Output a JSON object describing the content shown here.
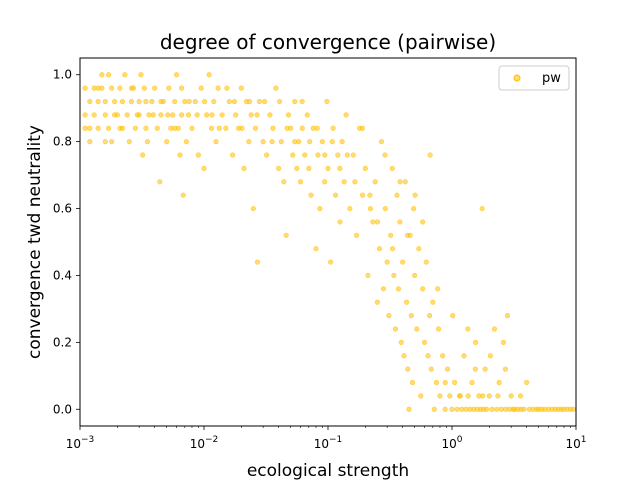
{
  "chart_data": {
    "type": "scatter",
    "title": "degree of convergence (pairwise)",
    "xlabel": "ecological strength",
    "ylabel": "convergence twd neutrality",
    "xscale": "log",
    "xlim": [
      0.001,
      10
    ],
    "ylim": [
      -0.05,
      1.05
    ],
    "xticks": [
      0.001,
      0.01,
      0.1,
      1,
      10
    ],
    "xtick_labels": [
      {
        "base": "10",
        "exp": "−3"
      },
      {
        "base": "10",
        "exp": "−2"
      },
      {
        "base": "10",
        "exp": "−1"
      },
      {
        "base": "10",
        "exp": "0"
      },
      {
        "base": "10",
        "exp": "1"
      }
    ],
    "yticks": [
      0.0,
      0.2,
      0.4,
      0.6,
      0.8,
      1.0
    ],
    "ytick_labels": [
      "0.0",
      "0.2",
      "0.4",
      "0.6",
      "0.8",
      "1.0"
    ],
    "grid": false,
    "legend_position": "top-right",
    "series": [
      {
        "name": "pw",
        "color": "#FFBF00",
        "points": [
          [
            0.0011,
            0.96
          ],
          [
            0.0011,
            0.88
          ],
          [
            0.0011,
            0.84
          ],
          [
            0.0012,
            0.92
          ],
          [
            0.0012,
            0.8
          ],
          [
            0.0013,
            0.96
          ],
          [
            0.0013,
            0.88
          ],
          [
            0.0014,
            0.92
          ],
          [
            0.0014,
            0.84
          ],
          [
            0.0015,
            1.0
          ],
          [
            0.0015,
            0.96
          ],
          [
            0.0016,
            0.88
          ],
          [
            0.0016,
            0.92
          ],
          [
            0.0017,
            1.0
          ],
          [
            0.0017,
            0.84
          ],
          [
            0.0018,
            0.96
          ],
          [
            0.0018,
            0.8
          ],
          [
            0.0019,
            0.92
          ],
          [
            0.002,
            0.88
          ],
          [
            0.0021,
            0.96
          ],
          [
            0.0021,
            0.84
          ],
          [
            0.0022,
            0.92
          ],
          [
            0.0023,
            1.0
          ],
          [
            0.0024,
            0.88
          ],
          [
            0.0025,
            0.8
          ],
          [
            0.0026,
            0.92
          ],
          [
            0.0027,
            0.96
          ],
          [
            0.0028,
            0.84
          ],
          [
            0.0029,
            0.88
          ],
          [
            0.003,
            0.92
          ],
          [
            0.0031,
            1.0
          ],
          [
            0.0032,
            0.76
          ],
          [
            0.0033,
            0.96
          ],
          [
            0.0034,
            0.84
          ],
          [
            0.0035,
            0.8
          ],
          [
            0.0036,
            0.88
          ],
          [
            0.0038,
            0.92
          ],
          [
            0.004,
            0.96
          ],
          [
            0.0042,
            0.84
          ],
          [
            0.0044,
            0.68
          ],
          [
            0.0045,
            0.88
          ],
          [
            0.0047,
            0.92
          ],
          [
            0.005,
            0.8
          ],
          [
            0.0052,
            0.96
          ],
          [
            0.0054,
            0.84
          ],
          [
            0.0056,
            0.88
          ],
          [
            0.0058,
            0.92
          ],
          [
            0.006,
            1.0
          ],
          [
            0.0062,
            0.84
          ],
          [
            0.0064,
            0.76
          ],
          [
            0.0066,
            0.88
          ],
          [
            0.0068,
            0.64
          ],
          [
            0.007,
            0.92
          ],
          [
            0.0072,
            0.8
          ],
          [
            0.0075,
            0.88
          ],
          [
            0.008,
            0.84
          ],
          [
            0.0085,
            0.92
          ],
          [
            0.009,
            0.76
          ],
          [
            0.0095,
            0.96
          ],
          [
            0.01,
            0.72
          ],
          [
            0.0105,
            0.88
          ],
          [
            0.011,
            1.0
          ],
          [
            0.0115,
            0.84
          ],
          [
            0.012,
            0.92
          ],
          [
            0.0125,
            0.8
          ],
          [
            0.013,
            0.96
          ],
          [
            0.014,
            0.88
          ],
          [
            0.015,
            0.84
          ],
          [
            0.016,
            0.92
          ],
          [
            0.017,
            0.76
          ],
          [
            0.018,
            0.88
          ],
          [
            0.019,
            0.84
          ],
          [
            0.02,
            0.96
          ],
          [
            0.021,
            0.72
          ],
          [
            0.022,
            0.92
          ],
          [
            0.023,
            0.8
          ],
          [
            0.024,
            0.88
          ],
          [
            0.025,
            0.6
          ],
          [
            0.026,
            0.84
          ],
          [
            0.027,
            0.44
          ],
          [
            0.028,
            0.92
          ],
          [
            0.03,
            0.8
          ],
          [
            0.032,
            0.76
          ],
          [
            0.034,
            0.88
          ],
          [
            0.036,
            0.84
          ],
          [
            0.038,
            0.96
          ],
          [
            0.04,
            0.72
          ],
          [
            0.042,
            0.8
          ],
          [
            0.044,
            0.68
          ],
          [
            0.046,
            0.52
          ],
          [
            0.048,
            0.88
          ],
          [
            0.05,
            0.84
          ],
          [
            0.052,
            0.76
          ],
          [
            0.054,
            0.92
          ],
          [
            0.056,
            0.72
          ],
          [
            0.058,
            0.8
          ],
          [
            0.06,
            0.68
          ],
          [
            0.062,
            0.84
          ],
          [
            0.065,
            0.76
          ],
          [
            0.068,
            0.88
          ],
          [
            0.07,
            0.72
          ],
          [
            0.073,
            0.64
          ],
          [
            0.076,
            0.84
          ],
          [
            0.08,
            0.48
          ],
          [
            0.083,
            0.76
          ],
          [
            0.086,
            0.6
          ],
          [
            0.09,
            0.8
          ],
          [
            0.094,
            0.68
          ],
          [
            0.098,
            0.92
          ],
          [
            0.1,
            0.72
          ],
          [
            0.105,
            0.44
          ],
          [
            0.11,
            0.84
          ],
          [
            0.115,
            0.64
          ],
          [
            0.12,
            0.76
          ],
          [
            0.125,
            0.56
          ],
          [
            0.13,
            0.8
          ],
          [
            0.135,
            0.68
          ],
          [
            0.14,
            0.88
          ],
          [
            0.15,
            0.6
          ],
          [
            0.16,
            0.76
          ],
          [
            0.17,
            0.52
          ],
          [
            0.18,
            0.84
          ],
          [
            0.19,
            0.64
          ],
          [
            0.2,
            0.72
          ],
          [
            0.21,
            0.4
          ],
          [
            0.22,
            0.6
          ],
          [
            0.23,
            0.56
          ],
          [
            0.24,
            0.68
          ],
          [
            0.25,
            0.32
          ],
          [
            0.26,
            0.48
          ],
          [
            0.27,
            0.8
          ],
          [
            0.28,
            0.36
          ],
          [
            0.29,
            0.6
          ],
          [
            0.3,
            0.44
          ],
          [
            0.31,
            0.28
          ],
          [
            0.32,
            0.52
          ],
          [
            0.33,
            0.72
          ],
          [
            0.34,
            0.4
          ],
          [
            0.35,
            0.24
          ],
          [
            0.36,
            0.64
          ],
          [
            0.37,
            0.36
          ],
          [
            0.38,
            0.56
          ],
          [
            0.39,
            0.2
          ],
          [
            0.4,
            0.44
          ],
          [
            0.41,
            0.16
          ],
          [
            0.42,
            0.68
          ],
          [
            0.43,
            0.32
          ],
          [
            0.44,
            0.12
          ],
          [
            0.45,
            0.0
          ],
          [
            0.46,
            0.52
          ],
          [
            0.47,
            0.28
          ],
          [
            0.48,
            0.08
          ],
          [
            0.49,
            0.6
          ],
          [
            0.5,
            0.4
          ],
          [
            0.52,
            0.24
          ],
          [
            0.54,
            0.48
          ],
          [
            0.56,
            0.04
          ],
          [
            0.58,
            0.36
          ],
          [
            0.6,
            0.2
          ],
          [
            0.62,
            0.44
          ],
          [
            0.64,
            0.16
          ],
          [
            0.66,
            0.28
          ],
          [
            0.68,
            0.12
          ],
          [
            0.7,
            0.32
          ],
          [
            0.72,
            0.0
          ],
          [
            0.75,
            0.08
          ],
          [
            0.78,
            0.24
          ],
          [
            0.8,
            0.04
          ],
          [
            0.84,
            0.16
          ],
          [
            0.88,
            0.0
          ],
          [
            0.92,
            0.12
          ],
          [
            0.96,
            0.04
          ],
          [
            1.0,
            0.0
          ],
          [
            1.05,
            0.08
          ],
          [
            1.1,
            0.0
          ],
          [
            1.15,
            0.04
          ],
          [
            1.2,
            0.0
          ],
          [
            1.25,
            0.16
          ],
          [
            1.3,
            0.0
          ],
          [
            1.35,
            0.04
          ],
          [
            1.4,
            0.0
          ],
          [
            1.45,
            0.08
          ],
          [
            1.5,
            0.0
          ],
          [
            1.55,
            0.2
          ],
          [
            1.6,
            0.0
          ],
          [
            1.65,
            0.04
          ],
          [
            1.7,
            0.0
          ],
          [
            1.75,
            0.6
          ],
          [
            1.8,
            0.0
          ],
          [
            1.85,
            0.12
          ],
          [
            1.9,
            0.0
          ],
          [
            2.0,
            0.04
          ],
          [
            2.1,
            0.0
          ],
          [
            2.2,
            0.24
          ],
          [
            2.3,
            0.0
          ],
          [
            2.4,
            0.08
          ],
          [
            2.5,
            0.0
          ],
          [
            2.6,
            0.2
          ],
          [
            2.7,
            0.0
          ],
          [
            2.8,
            0.28
          ],
          [
            2.9,
            0.0
          ],
          [
            3.0,
            0.04
          ],
          [
            3.2,
            0.0
          ],
          [
            3.4,
            0.0
          ],
          [
            3.6,
            0.0
          ],
          [
            3.8,
            0.0
          ],
          [
            4.0,
            0.08
          ],
          [
            4.2,
            0.0
          ],
          [
            4.5,
            0.0
          ],
          [
            4.8,
            0.0
          ],
          [
            5.0,
            0.0
          ],
          [
            5.3,
            0.0
          ],
          [
            5.6,
            0.0
          ],
          [
            6.0,
            0.0
          ],
          [
            6.4,
            0.0
          ],
          [
            6.8,
            0.0
          ],
          [
            7.2,
            0.0
          ],
          [
            7.6,
            0.0
          ],
          [
            8.0,
            0.0
          ],
          [
            8.5,
            0.0
          ],
          [
            9.0,
            0.0
          ],
          [
            9.5,
            0.0
          ],
          [
            0.0012,
            0.84
          ],
          [
            0.0014,
            0.96
          ],
          [
            0.0016,
            0.8
          ],
          [
            0.0019,
            0.88
          ],
          [
            0.0022,
            0.84
          ],
          [
            0.0026,
            0.96
          ],
          [
            0.003,
            0.88
          ],
          [
            0.0034,
            0.92
          ],
          [
            0.0039,
            0.88
          ],
          [
            0.0045,
            0.92
          ],
          [
            0.0051,
            0.88
          ],
          [
            0.0058,
            0.84
          ],
          [
            0.0066,
            0.96
          ],
          [
            0.0076,
            0.92
          ],
          [
            0.0088,
            0.88
          ],
          [
            0.0101,
            0.92
          ],
          [
            0.0116,
            0.88
          ],
          [
            0.0133,
            0.84
          ],
          [
            0.0153,
            0.96
          ],
          [
            0.0176,
            0.92
          ],
          [
            0.0202,
            0.84
          ],
          [
            0.0233,
            0.92
          ],
          [
            0.0268,
            0.88
          ],
          [
            0.0308,
            0.92
          ],
          [
            0.0354,
            0.8
          ],
          [
            0.0407,
            0.92
          ],
          [
            0.0468,
            0.84
          ],
          [
            0.0539,
            0.8
          ],
          [
            0.0619,
            0.92
          ],
          [
            0.0712,
            0.8
          ],
          [
            0.0819,
            0.84
          ],
          [
            0.0942,
            0.76
          ],
          [
            0.1083,
            0.8
          ],
          [
            0.1246,
            0.72
          ],
          [
            0.1433,
            0.76
          ],
          [
            0.1648,
            0.68
          ],
          [
            0.1895,
            0.84
          ],
          [
            0.2179,
            0.64
          ],
          [
            0.2506,
            0.56
          ],
          [
            0.2882,
            0.76
          ],
          [
            0.3314,
            0.48
          ],
          [
            0.3811,
            0.68
          ],
          [
            0.4383,
            0.52
          ],
          [
            0.504,
            0.64
          ],
          [
            0.5796,
            0.56
          ],
          [
            0.6666,
            0.76
          ],
          [
            0.7666,
            0.36
          ],
          [
            0.8816,
            0.08
          ],
          [
            1.0138,
            0.28
          ],
          [
            1.1659,
            0.04
          ],
          [
            1.3408,
            0.24
          ],
          [
            1.5419,
            0.12
          ],
          [
            1.7732,
            0.04
          ],
          [
            2.0392,
            0.16
          ],
          [
            2.3451,
            0.04
          ],
          [
            2.6968,
            0.12
          ],
          [
            3.1013,
            0.0
          ],
          [
            3.5665,
            0.04
          ]
        ]
      }
    ]
  }
}
